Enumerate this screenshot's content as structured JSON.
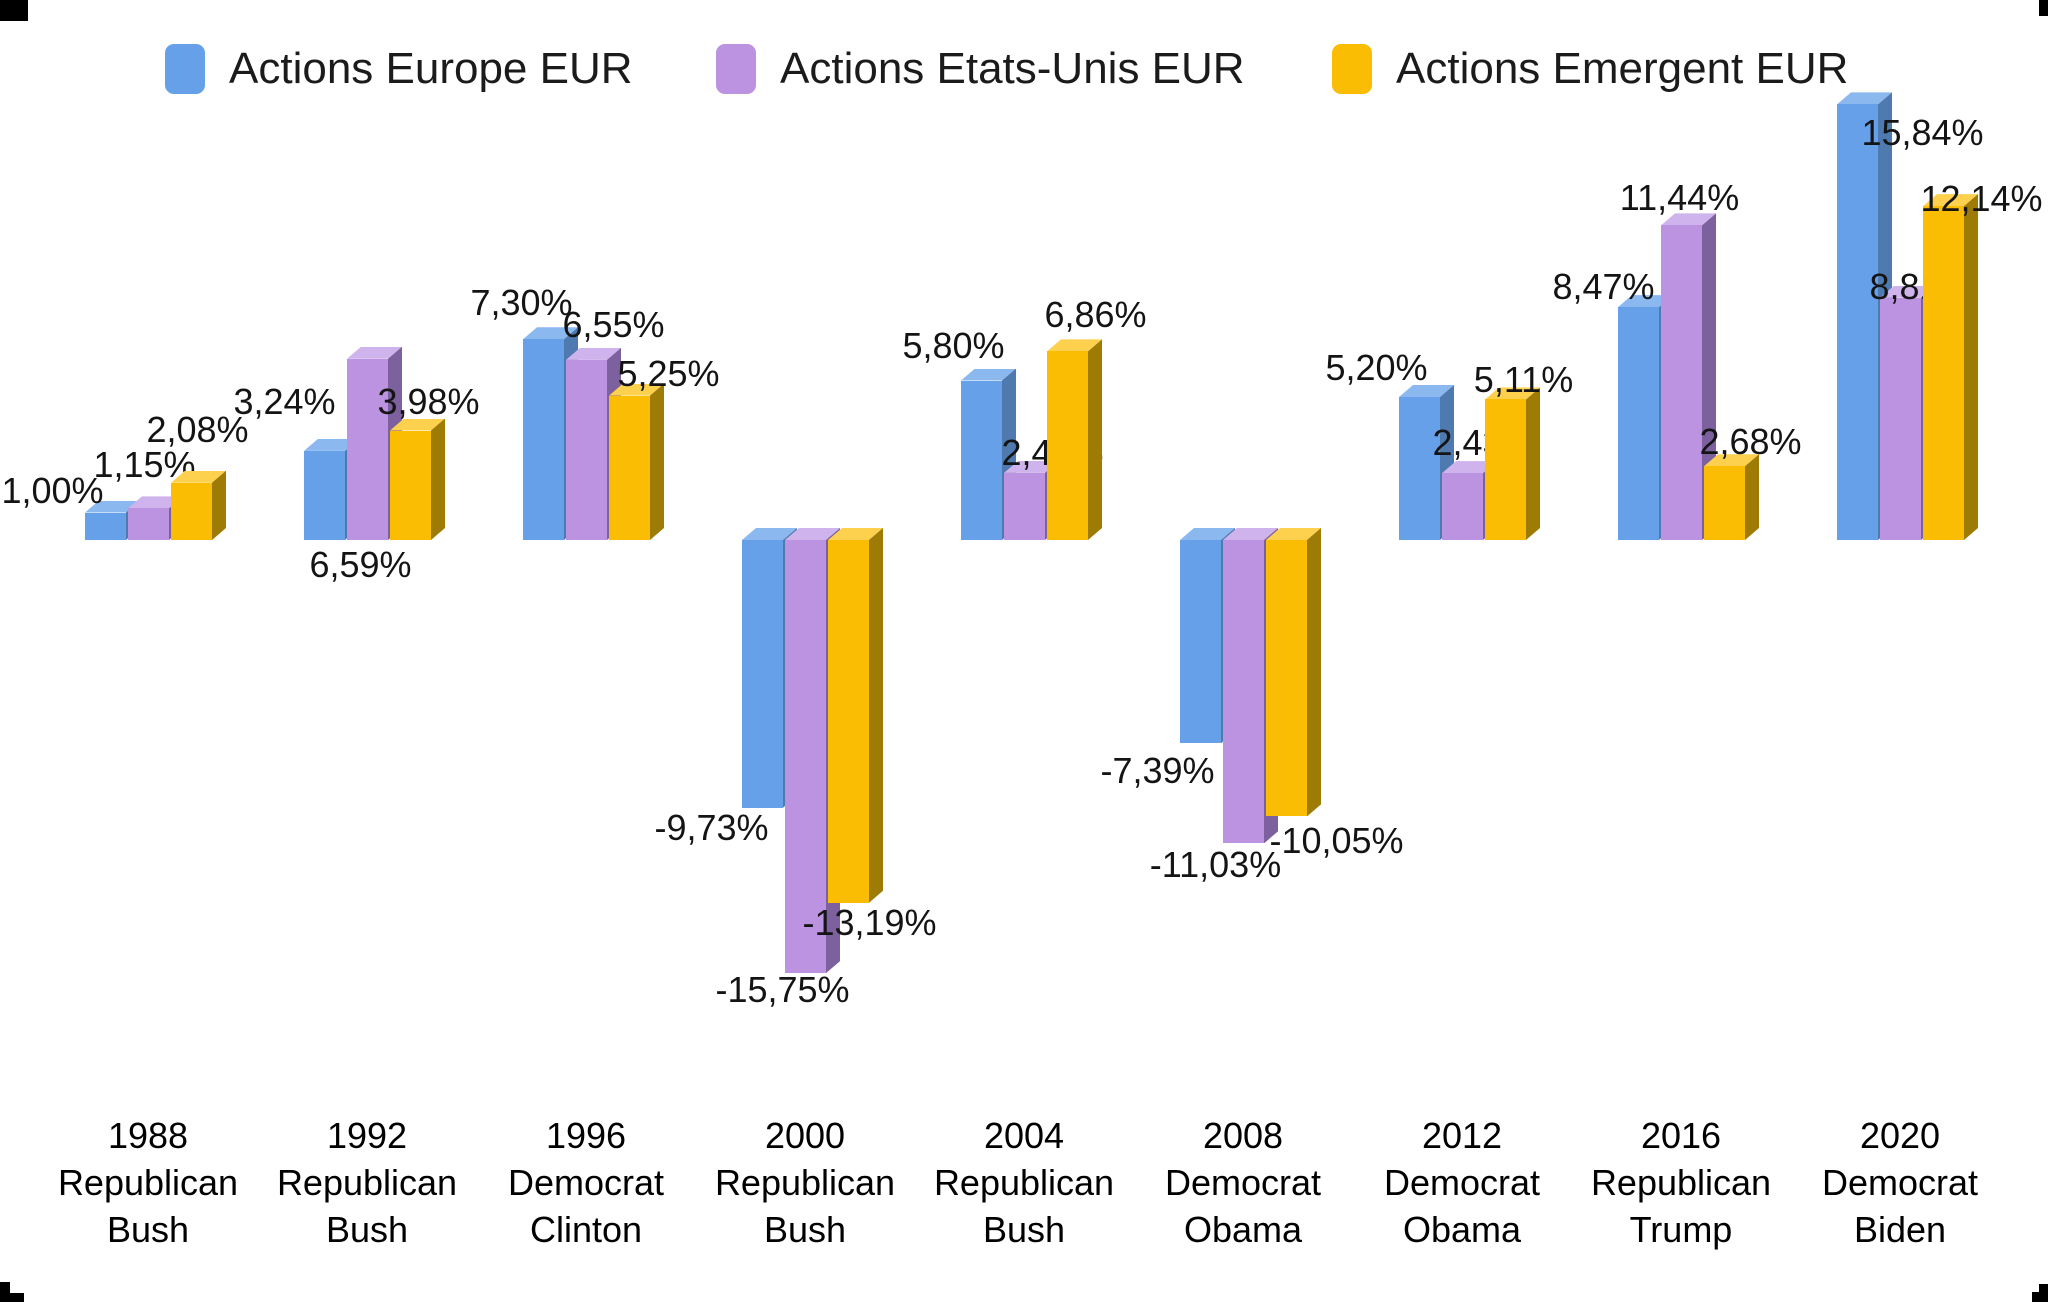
{
  "page": {
    "background": "#ffffff"
  },
  "legend": [
    {
      "label": "Actions Europe EUR",
      "color": "#66a0e8"
    },
    {
      "label": "Actions Etats-Unis EUR",
      "color": "#bb93e0"
    },
    {
      "label": "Actions Emergent EUR",
      "color": "#fbbc04"
    }
  ],
  "chart_data": {
    "type": "bar",
    "style": "3d-column",
    "title": "",
    "xlabel": "",
    "ylabel": "",
    "grid": false,
    "axis_lines": false,
    "legend_position": "top",
    "decimal_separator": ",",
    "ylim": [
      -16,
      16
    ],
    "categories": [
      {
        "year": "1988",
        "party": "Republican",
        "president": "Bush"
      },
      {
        "year": "1992",
        "party": "Republican",
        "president": "Bush"
      },
      {
        "year": "1996",
        "party": "Democrat",
        "president": "Clinton"
      },
      {
        "year": "2000",
        "party": "Republican",
        "president": "Bush"
      },
      {
        "year": "2004",
        "party": "Republican",
        "president": "Bush"
      },
      {
        "year": "2008",
        "party": "Democrat",
        "president": "Obama"
      },
      {
        "year": "2012",
        "party": "Democrat",
        "president": "Obama"
      },
      {
        "year": "2016",
        "party": "Republican",
        "president": "Trump"
      },
      {
        "year": "2020",
        "party": "Democrat",
        "president": "Biden"
      }
    ],
    "series": [
      {
        "name": "Actions Europe EUR",
        "color": "#66a0e8",
        "color_top": "#8cb8f0",
        "color_side": "#4f7ab0",
        "values": [
          1.0,
          3.24,
          7.3,
          -9.73,
          5.8,
          -7.39,
          5.2,
          8.47,
          15.84
        ],
        "labels": [
          "1,00%",
          "3,24%",
          "7,30%",
          "-9,73%",
          "5,80%",
          "-7,39%",
          "5,20%",
          "8,47%",
          "15,84%"
        ]
      },
      {
        "name": "Actions Etats-Unis EUR",
        "color": "#bb93e0",
        "color_top": "#cfb3ec",
        "color_side": "#7d619f",
        "values": [
          1.15,
          6.59,
          6.55,
          -15.75,
          2.44,
          -11.03,
          2.43,
          11.44,
          8.81
        ],
        "labels": [
          "1,15%",
          "6,59%",
          "6,55%",
          "-15,75%",
          "2,44%",
          "-11,03%",
          "2,43%",
          "11,44%",
          "8,81%"
        ]
      },
      {
        "name": "Actions Emergent EUR",
        "color": "#fbbc04",
        "color_top": "#fdd04e",
        "color_side": "#9d7b05",
        "values": [
          2.08,
          3.98,
          5.25,
          -13.19,
          6.86,
          -10.05,
          5.11,
          2.68,
          12.14
        ],
        "labels": [
          "2,08%",
          "3,98%",
          "5,25%",
          "-13,19%",
          "6,86%",
          "-10,05%",
          "5,11%",
          "2,68%",
          "12,14%"
        ]
      }
    ]
  }
}
